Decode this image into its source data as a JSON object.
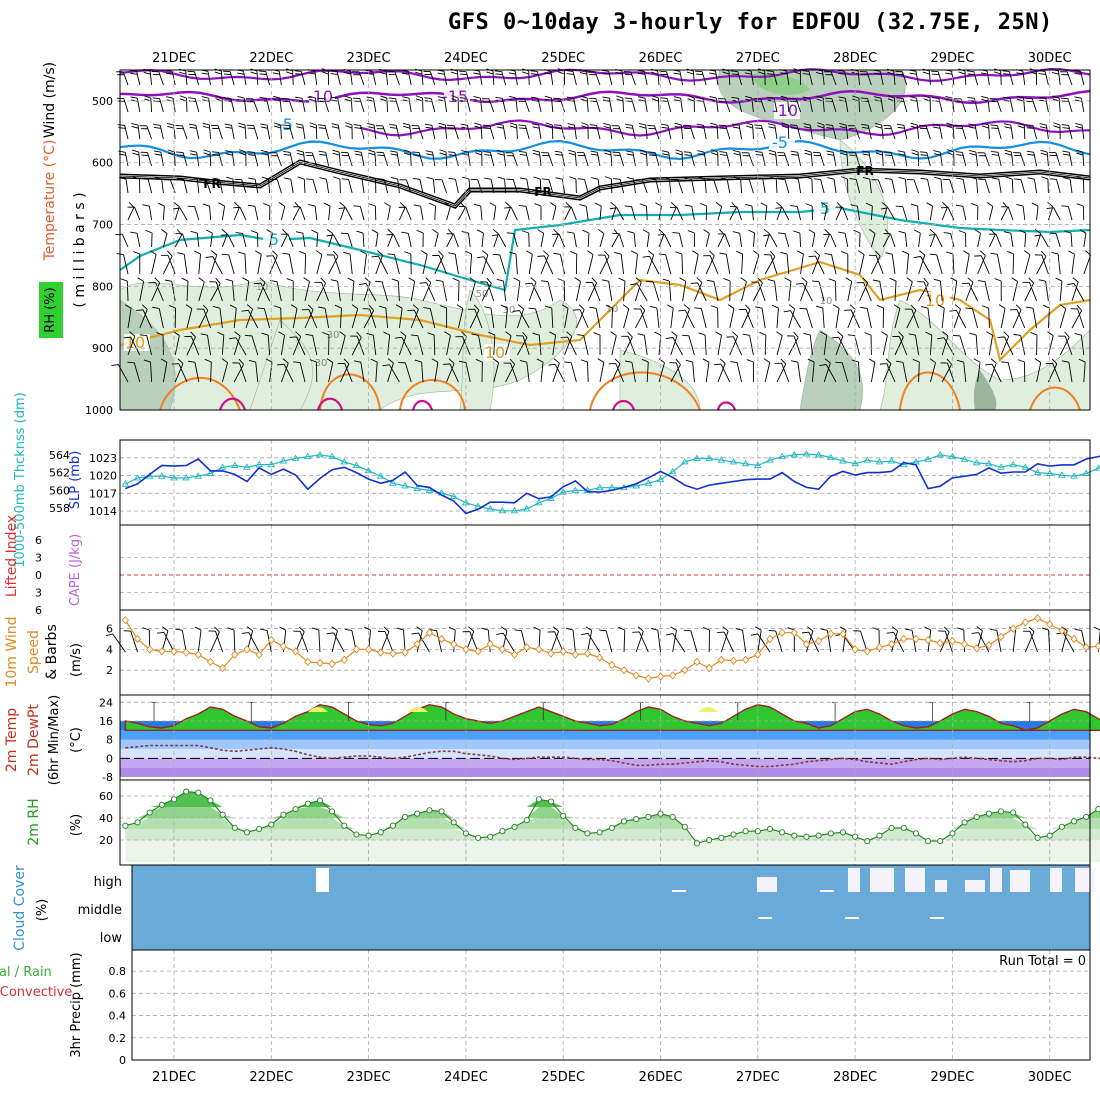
{
  "title": "GFS 0~10day 3-hourly for EDFOU (32.75E, 25N)",
  "date_labels": [
    "21DEC",
    "22DEC",
    "23DEC",
    "24DEC",
    "25DEC",
    "26DEC",
    "27DEC",
    "28DEC",
    "29DEC",
    "30DEC"
  ],
  "panels": {
    "upper": {
      "ylabel_wind": "Wind (m/s)",
      "ylabel_temp": "Temperature (°C)",
      "ylabel_rh": "RH (%)",
      "ylabel_mb": "( m i l l i b a r s )",
      "pressure_ticks": [
        "500",
        "600",
        "700",
        "800",
        "900",
        "1000"
      ],
      "contour_labels": {
        "t_minus10": "-10",
        "t_minus15": "-15",
        "t_minus5": "-5",
        "fr": "FR",
        "t_5": "5",
        "t_10": "10",
        "rh_10": "10",
        "rh_30": "30",
        "rh_50": "50"
      }
    },
    "pressure": {
      "ylabel_thick": "1000-500mb Thcknss (dm)",
      "ylabel_slp": "SLP (mb)",
      "thick_ticks": [
        "564",
        "562",
        "560",
        "558"
      ],
      "slp_ticks": [
        "1023",
        "1020",
        "1017",
        "1014"
      ]
    },
    "stability": {
      "ylabel_li": "Lifted Index",
      "ylabel_cape": "CAPE (J/kg)",
      "ticks": [
        "6",
        "3",
        "0",
        "3",
        "6"
      ]
    },
    "wind10": {
      "ylabel_a": "10m Wind",
      "ylabel_b": "Speed",
      "ylabel_c": "& Barbs",
      "unit": "(m/s)",
      "ticks": [
        "6",
        "4",
        "2"
      ]
    },
    "temp": {
      "ylabel_a": "2m Temp",
      "ylabel_b": "2m DewPt",
      "ylabel_c": "(6hr Min/Max)",
      "unit": "(°C)",
      "ticks": [
        "24",
        "16",
        "8",
        "0",
        "-8"
      ]
    },
    "rh": {
      "ylabel_a": "2m RH",
      "unit": "(%)",
      "ticks": [
        "60",
        "40",
        "20"
      ]
    },
    "cloud": {
      "ylabel_a": "Cloud Cover",
      "unit": "(%)",
      "levels": [
        "high",
        "middle",
        "low"
      ]
    },
    "precip": {
      "ylabel_a": "Total / Rain",
      "ylabel_b": "Convective",
      "ylabel_c": "3hr Precip (mm)",
      "run_total": "Run Total = 0",
      "ticks": [
        "0.8",
        "0.6",
        "0.4",
        "0.2",
        "0"
      ]
    }
  },
  "colors": {
    "slp": "#1030d0",
    "thickness": "#20b8c0",
    "wind_speed": "#e08a20",
    "temp_max": "#30c030",
    "rh": "#30c030",
    "cloud": "#6aaad8",
    "li": "#e03030",
    "cape": "#c060e0",
    "t_minus10": "#9010c0",
    "t_minus5": "#1090e0",
    "t_5": "#10b0b0",
    "t_10": "#e0a020"
  },
  "chart_data": {
    "type": "line",
    "time_step_hours": 3,
    "x_start": "20DEC 12Z",
    "series": [
      {
        "name": "SLP (mb)",
        "values": [
          1017.8,
          1018.6,
          1020.2,
          1021.7,
          1021.6,
          1021.7,
          1022.8,
          1020.8,
          1020.8,
          1020.2,
          1019.0,
          1021.3,
          1020.2,
          1021.1,
          1020.1,
          1017.7,
          1019.5,
          1021.0,
          1021.4,
          1020.5,
          1019.4,
          1018.7,
          1019.2,
          1020.6,
          1018.3,
          1018.0,
          1016.7,
          1015.7,
          1013.6,
          1014.3,
          1015.5,
          1015.5,
          1015.4,
          1017.0,
          1016.1,
          1016.4,
          1018.1,
          1019.1,
          1017.3,
          1017.2,
          1017.5,
          1018.0,
          1018.6,
          1019.6,
          1020.7,
          1019.7,
          1018.4,
          1017.7,
          1018.4,
          1018.7,
          1019.0,
          1019.3,
          1019.4,
          1019.4,
          1020.5,
          1019.0,
          1018.0,
          1017.7,
          1019.9,
          1020.7,
          1020.1,
          1020.5,
          1020.5,
          1020.7,
          1022.2,
          1021.8,
          1017.8,
          1018.2,
          1019.6,
          1019.9,
          1020.2,
          1021.3,
          1020.4,
          1020.6,
          1020.6,
          1022.0,
          1021.6,
          1021.8,
          1021.8,
          1022.8,
          1023.2,
          1023.8,
          1023.2,
          1022.1,
          1023.0,
          1023.4,
          1022.8,
          1022.4,
          1023.1,
          1023.2,
          1023.1,
          1022.8,
          1024.7
        ]
      },
      {
        "name": "1000-500mb Thickness (dm)",
        "values": [
          560.7,
          561.4,
          561.6,
          561.6,
          561.4,
          561.4,
          561.6,
          561.9,
          562.6,
          562.8,
          562.6,
          562.9,
          562.9,
          563.3,
          563.6,
          563.8,
          564.0,
          563.8,
          563.2,
          562.8,
          562.2,
          561.6,
          560.8,
          560.5,
          560.2,
          560.0,
          559.7,
          559.3,
          558.6,
          558.2,
          557.9,
          557.7,
          557.7,
          557.9,
          558.6,
          559.1,
          559.8,
          560.0,
          560.0,
          560.3,
          560.3,
          560.3,
          560.5,
          560.8,
          561.2,
          562.1,
          563.2,
          563.6,
          563.6,
          563.4,
          563.2,
          563.0,
          562.8,
          563.4,
          563.8,
          564.0,
          564.1,
          564.0,
          563.7,
          563.3,
          563.0,
          563.4,
          563.2,
          563.3,
          562.9,
          563.2,
          563.5,
          564.0,
          563.8,
          563.5,
          563.1,
          563.0,
          562.6,
          562.9,
          562.6,
          562.0,
          561.9,
          561.7,
          561.6,
          561.9,
          562.5,
          563.0,
          563.0,
          562.8,
          563.6,
          563.5,
          563.4,
          563.0,
          562.9,
          562.8,
          562.7,
          562.6,
          562.1
        ]
      },
      {
        "name": "10m Wind Speed (m/s)",
        "values": [
          6.8,
          5.0,
          4.0,
          3.8,
          3.8,
          3.7,
          3.5,
          2.8,
          2.2,
          3.5,
          4.0,
          3.5,
          4.9,
          4.3,
          3.8,
          2.8,
          2.7,
          2.6,
          3.0,
          4.0,
          4.0,
          3.7,
          3.6,
          3.7,
          4.5,
          5.6,
          5.0,
          4.5,
          4.0,
          3.8,
          4.5,
          4.0,
          3.5,
          4.2,
          4.0,
          3.6,
          3.8,
          3.5,
          3.6,
          3.2,
          2.5,
          2.0,
          1.5,
          1.2,
          1.4,
          1.5,
          2.0,
          2.8,
          2.2,
          3.0,
          2.9,
          3.0,
          3.5,
          5.0,
          5.6,
          5.6,
          4.5,
          4.8,
          5.5,
          5.5,
          4.0,
          3.8,
          4.2,
          4.5,
          5.0,
          5.0,
          4.9,
          4.6,
          4.8,
          4.5,
          4.1,
          4.4,
          5.2,
          6.0,
          6.6,
          7.0,
          6.4,
          5.8,
          5.0,
          4.2,
          4.3,
          4.5,
          4.8,
          5.6,
          6.0,
          5.8,
          4.0,
          3.2,
          3.0,
          2.9,
          3.0,
          2.9,
          2.9
        ]
      },
      {
        "name": "2m Temp (°C)",
        "values": [
          16,
          15,
          13.5,
          13,
          14,
          17,
          19,
          22,
          21,
          18,
          16,
          13.5,
          13,
          15,
          18,
          20,
          23,
          22,
          19,
          16,
          14.5,
          14,
          15,
          18,
          21,
          23,
          22,
          19,
          17,
          16,
          15,
          16,
          18,
          20,
          22,
          20,
          18,
          16,
          15,
          14,
          14.5,
          17,
          20,
          22,
          21,
          18,
          16,
          15,
          14,
          15,
          18,
          21,
          23,
          22,
          19,
          16,
          15,
          13,
          14,
          17,
          20,
          21,
          19,
          16,
          14,
          13,
          13.5,
          16,
          19,
          21,
          20,
          18,
          15,
          14,
          12,
          13,
          16,
          19,
          21,
          20,
          17,
          14,
          12,
          11,
          12,
          16,
          19,
          21,
          20,
          17,
          15,
          14,
          13
        ]
      },
      {
        "name": "2m Dew Point (°C)",
        "values": [
          4.5,
          5,
          5.5,
          5.5,
          5.5,
          5.5,
          5.5,
          4.5,
          3.5,
          3,
          3.5,
          4,
          4.5,
          4,
          3,
          1.5,
          0.5,
          0,
          0.5,
          1,
          1,
          0.5,
          0,
          0.5,
          1.5,
          2.5,
          3,
          3,
          2,
          1.5,
          1,
          0,
          -0.5,
          0,
          0.5,
          0.5,
          0.5,
          0,
          -0.5,
          -0.5,
          -1,
          -2,
          -3,
          -3,
          -2.5,
          -2.5,
          -2,
          -1.5,
          -1,
          -1.5,
          -2.5,
          -3,
          -3.5,
          -3.5,
          -3,
          -2.5,
          -1.5,
          -1,
          -0.5,
          0,
          -0.5,
          -1.5,
          -2,
          -2.5,
          -1.5,
          -0.5,
          0,
          -0.5,
          0,
          0.5,
          0,
          -0.5,
          -1,
          -1.5,
          -1,
          0,
          0,
          -0.5,
          0.5,
          0.5,
          0,
          -0.5,
          -1,
          -0.5,
          0,
          0.5,
          1.5,
          2.5,
          2,
          1,
          1,
          1.5,
          2
        ]
      },
      {
        "name": "2m RH (%)",
        "values": [
          33,
          36,
          45,
          52,
          57,
          64,
          63,
          56,
          43,
          31,
          27,
          30,
          34,
          43,
          48,
          53,
          56,
          46,
          33,
          25,
          24,
          27,
          33,
          41,
          44,
          47,
          46,
          36,
          26,
          22,
          23,
          28,
          32,
          38,
          57,
          55,
          42,
          31,
          26,
          27,
          31,
          37,
          39,
          41,
          44,
          41,
          32,
          17,
          20,
          22,
          25,
          28,
          28,
          30,
          27,
          24,
          23,
          24,
          26,
          27,
          23,
          19,
          24,
          31,
          31,
          26,
          19,
          19,
          26,
          36,
          41,
          44,
          46,
          45,
          34,
          22,
          24,
          32,
          37,
          41,
          48,
          50,
          54,
          57,
          45,
          28,
          25,
          32,
          35,
          40,
          44,
          44,
          45,
          47,
          46
        ]
      }
    ]
  }
}
